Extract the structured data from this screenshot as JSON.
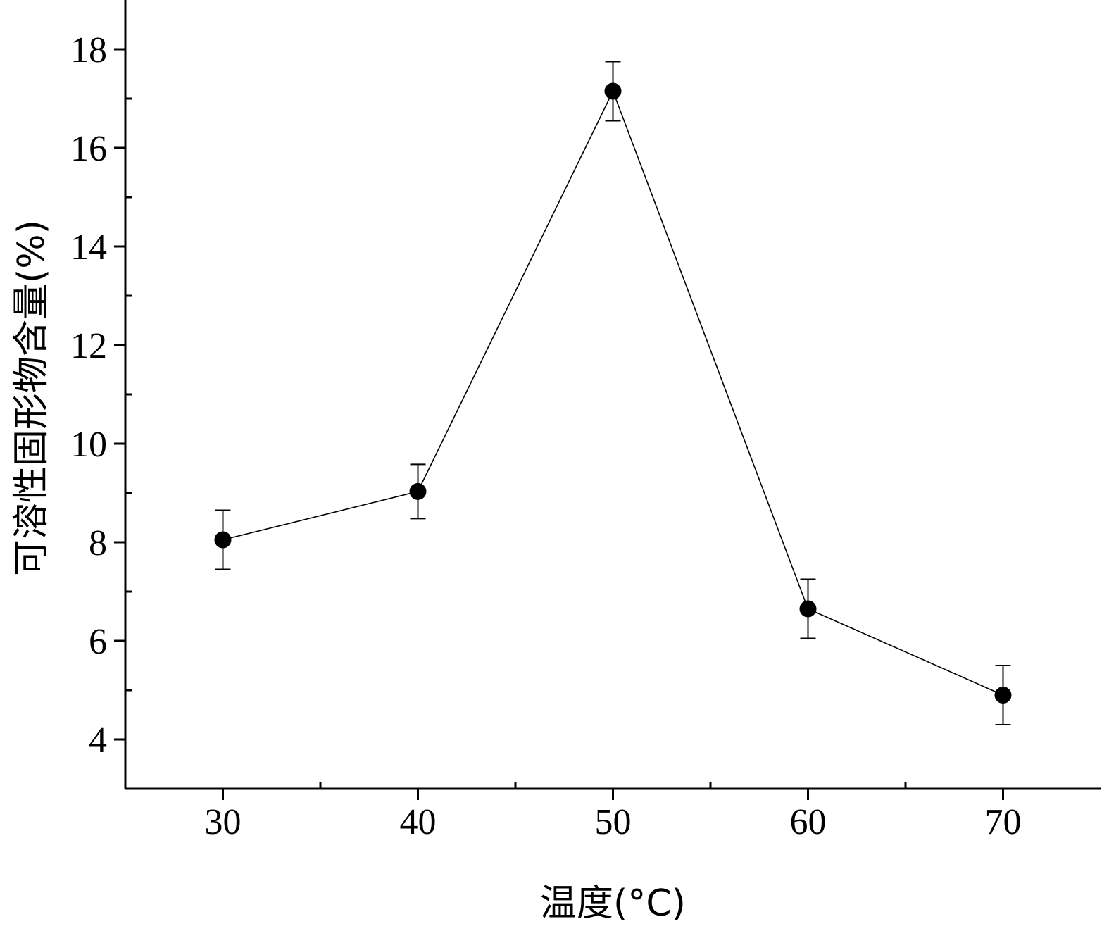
{
  "chart_data": {
    "type": "line",
    "xlabel": "温度(°C)",
    "ylabel": "可溶性固形物含量(%)",
    "xlim": [
      25,
      75
    ],
    "ylim": [
      3,
      19
    ],
    "x_ticks": [
      30,
      40,
      50,
      60,
      70
    ],
    "x_minor_ticks": [
      35,
      45,
      55,
      65
    ],
    "y_ticks": [
      4,
      6,
      8,
      10,
      12,
      14,
      16,
      18
    ],
    "y_minor_ticks": [
      5,
      7,
      9,
      11,
      13,
      15,
      17
    ],
    "grid": false,
    "series": [
      {
        "x": [
          30,
          40,
          50,
          60,
          70
        ],
        "y": [
          8.05,
          9.03,
          17.15,
          6.65,
          4.9
        ],
        "error": [
          0.6,
          0.55,
          0.6,
          0.6,
          0.6
        ],
        "color": "#000000",
        "marker": "circle"
      }
    ]
  }
}
